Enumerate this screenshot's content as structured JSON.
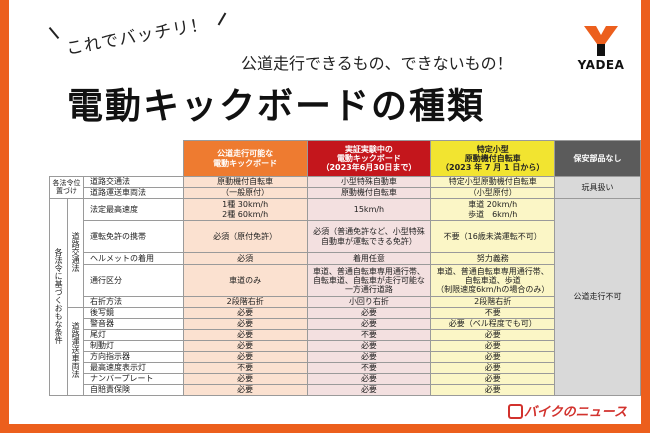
{
  "tagline": "これでバッチリ！",
  "subtitle": "公道走行できるもの、できないもの！",
  "title": "電動キックボードの種類",
  "logo": {
    "name": "YADEA",
    "icon": "yadea-y-icon",
    "color": "#ec5f1d"
  },
  "watermark": "バイクのニュース",
  "colors": {
    "frame": "#ec5f1d",
    "col1": "#ee7b30",
    "col2": "#c4161c",
    "col3": "#f2e430",
    "col4": "#5b5b5b"
  },
  "table": {
    "headers": [
      {
        "lines": [
          "公道走行可能な",
          "電動キックボード"
        ]
      },
      {
        "lines": [
          "実証実験中の",
          "電動キックボード",
          "（2023年6月30日まで）"
        ]
      },
      {
        "lines": [
          "特定小型",
          "原動機付自転車",
          "（2023 年 7 月 1 日から）"
        ]
      },
      {
        "lines": [
          "保安部品なし"
        ]
      }
    ],
    "groups": {
      "law_position": "各法令位置づけ",
      "based_on_laws": "各法令に基づくおもな条件",
      "road_traffic": "道路交通法",
      "vehicle_law": "道路運送車両法"
    },
    "rows": {
      "road_traffic_law": {
        "label": "道路交通法",
        "c1": "原動機付自転車",
        "c2": "小型特殊自動車",
        "c3": "特定小型原動機付自転車",
        "c4": "玩具扱い"
      },
      "vehicle_law": {
        "label": "道路運送車両法",
        "c1": "（一般原付）",
        "c2": "原動機付自転車",
        "c3": "（小型原付）"
      },
      "speed": {
        "label": "法定最高速度",
        "c1a": "1種 30km/h",
        "c1b": "2種 60km/h",
        "c2": "15km/h",
        "c3a": "車道 20km/h",
        "c3b": "歩道　6km/h"
      },
      "license": {
        "label": "運転免許の携帯",
        "c1": "必須（原付免許）",
        "c2a": "必須（普通免許など、小型特殊",
        "c2b": "自動車が運転できる免許）",
        "c3": "不要（16歳未満運転不可）"
      },
      "helmet": {
        "label": "ヘルメットの着用",
        "c1": "必須",
        "c2": "着用任意",
        "c3": "努力義務"
      },
      "area": {
        "label": "通行区分",
        "c1": "車道のみ",
        "c2a": "車道、普通自転車専用通行帯、",
        "c2b": "自転車道、自転車が走行可能な",
        "c2c": "一方通行道路",
        "c3a": "車道、普通自転車専用通行帯、",
        "c3b": "自転車道、歩道",
        "c3c": "（制限速度6km/hの場合のみ）",
        "c4": "公道走行不可"
      },
      "turn": {
        "label": "右折方法",
        "c1": "2段階右折",
        "c2": "小回り右折",
        "c3": "2段階右折"
      },
      "mirror": {
        "label": "後写鏡",
        "c1": "必要",
        "c2": "必要",
        "c3": "不要"
      },
      "horn": {
        "label": "警音器",
        "c1": "必要",
        "c2": "必要",
        "c3": "必要（ベル程度でも可）"
      },
      "taillight": {
        "label": "尾灯",
        "c1": "必要",
        "c2": "不要",
        "c3": "必要"
      },
      "brakelight": {
        "label": "制動灯",
        "c1": "必要",
        "c2": "必要",
        "c3": "必要"
      },
      "indicator": {
        "label": "方向指示器",
        "c1": "必要",
        "c2": "必要",
        "c3": "必要"
      },
      "speedlamp": {
        "label": "最高速度表示灯",
        "c1": "不要",
        "c2": "不要",
        "c3": "必要"
      },
      "plate": {
        "label": "ナンバープレート",
        "c1": "必要",
        "c2": "必要",
        "c3": "必要"
      },
      "insurance": {
        "label": "自賠責保険",
        "c1": "必要",
        "c2": "必要",
        "c3": "必要"
      }
    }
  }
}
